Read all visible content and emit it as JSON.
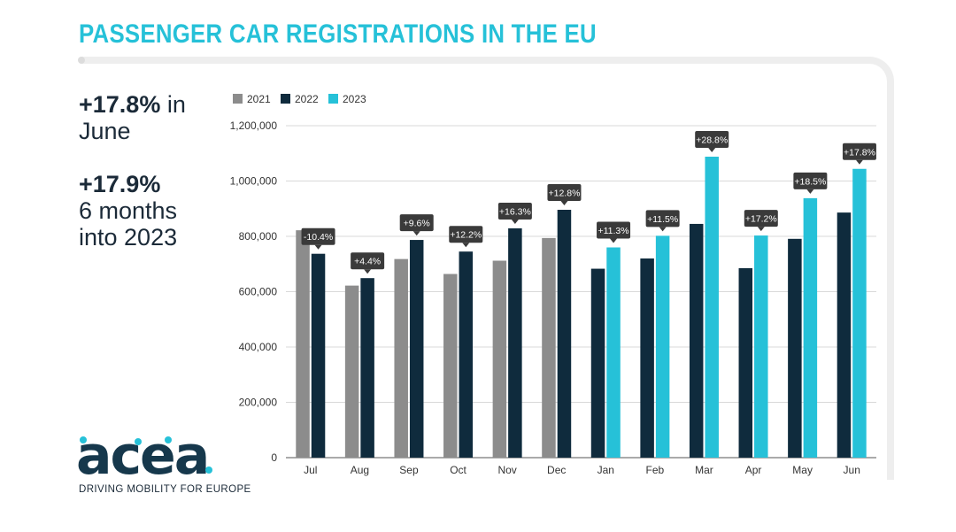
{
  "title": "PASSENGER CAR REGISTRATIONS IN THE EU",
  "kpis": [
    {
      "value": "+17.8%",
      "line1_rest": " in",
      "line2": "June"
    },
    {
      "value": "+17.9%",
      "line1_rest": "",
      "line2": "6 months",
      "line3": "into 2023"
    }
  ],
  "logo": {
    "text": "acea",
    "tagline": "DRIVING MOBILITY FOR EUROPE"
  },
  "colors": {
    "title": "#26c1d8",
    "2021": "#8c8c8c",
    "2022": "#0f2b3d",
    "2023": "#26c1d8",
    "bubble": "#3a3a3a"
  },
  "chart_data": {
    "type": "bar",
    "title": "PASSENGER CAR REGISTRATIONS IN THE EU",
    "categories": [
      "Jul",
      "Aug",
      "Sep",
      "Oct",
      "Nov",
      "Dec",
      "Jan",
      "Feb",
      "Mar",
      "Apr",
      "May",
      "Jun"
    ],
    "series": [
      {
        "name": "2021",
        "values": [
          822000,
          622000,
          718000,
          664000,
          712000,
          794000,
          null,
          null,
          null,
          null,
          null,
          null
        ]
      },
      {
        "name": "2022",
        "values": [
          737000,
          649000,
          787000,
          745000,
          829000,
          896000,
          683000,
          720000,
          845000,
          685000,
          791000,
          886000
        ]
      },
      {
        "name": "2023",
        "values": [
          null,
          null,
          null,
          null,
          null,
          null,
          760000,
          802000,
          1088000,
          803000,
          938000,
          1044000
        ]
      }
    ],
    "annotations": [
      "-10.4%",
      "+4.4%",
      "+9.6%",
      "+12.2%",
      "+16.3%",
      "+12.8%",
      "+11.3%",
      "+11.5%",
      "+28.8%",
      "+17.2%",
      "+18.5%",
      "+17.8%"
    ],
    "ylim": [
      0,
      1200000
    ],
    "yticks": [
      0,
      200000,
      400000,
      600000,
      800000,
      1000000,
      1200000
    ],
    "ytick_labels": [
      "0",
      "200,000",
      "400,000",
      "600,000",
      "800,000",
      "1,000,000",
      "1,200,000"
    ],
    "grid": true,
    "legend_position": "top-left",
    "xlabel": "",
    "ylabel": ""
  }
}
